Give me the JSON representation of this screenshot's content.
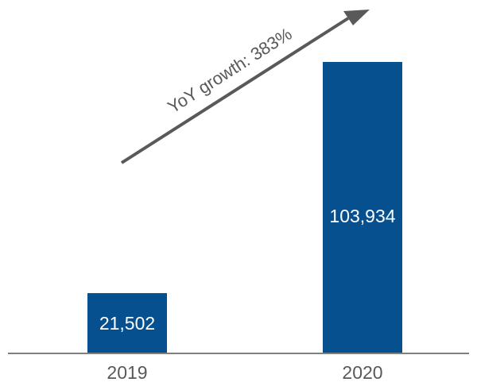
{
  "chart_data": {
    "type": "bar",
    "categories": [
      "2019",
      "2020"
    ],
    "values": [
      21502,
      103934
    ],
    "value_labels": [
      "21,502",
      "103,934"
    ],
    "title": "",
    "xlabel": "",
    "ylabel": "",
    "ylim": [
      0,
      103934
    ],
    "grid": false,
    "annotation": "YoY growth: 383%"
  },
  "colors": {
    "bar": "#06508F",
    "axis": "#808080",
    "arrow": "#595959",
    "text": "#595959"
  }
}
